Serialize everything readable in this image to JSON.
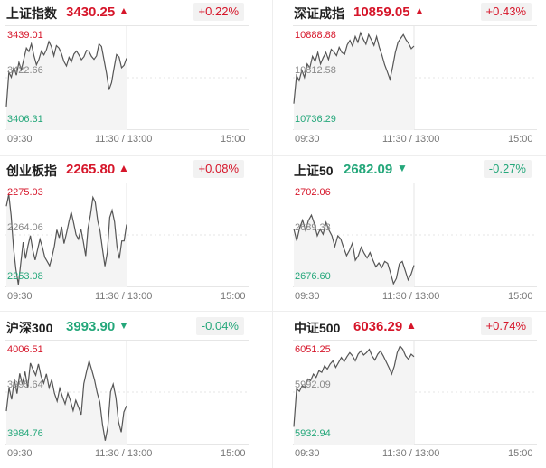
{
  "panels": [
    {
      "name": "上证指数",
      "price": "3430.25",
      "change": "+0.22%",
      "direction": "up",
      "y_high": "3439.01",
      "y_mid": "3422.66",
      "y_low": "3406.31",
      "x_ticks": [
        "09:30",
        "11:30 / 13:00",
        "15:00"
      ],
      "series": [
        3413.0,
        3424.5,
        3422.8,
        3426.2,
        3423.5,
        3427.8,
        3425.3,
        3429.0,
        3432.6,
        3431.4,
        3434.0,
        3430.1,
        3427.0,
        3428.8,
        3431.6,
        3430.3,
        3432.0,
        3434.8,
        3433.0,
        3430.0,
        3433.4,
        3432.6,
        3430.7,
        3428.1,
        3426.6,
        3429.5,
        3428.0,
        3430.6,
        3431.6,
        3430.2,
        3428.7,
        3429.7,
        3431.8,
        3431.5,
        3429.8,
        3428.8,
        3430.0,
        3434.0,
        3433.1,
        3428.6,
        3424.2,
        3418.6,
        3421.0,
        3425.8,
        3430.4,
        3429.6,
        3426.0,
        3426.8,
        3429.2
      ]
    },
    {
      "name": "深证成指",
      "price": "10859.05",
      "change": "+0.43%",
      "direction": "up",
      "y_high": "10888.88",
      "y_mid": "10812.58",
      "y_low": "10736.29",
      "x_ticks": [
        "09:30",
        "11:30 / 13:00",
        "15:00"
      ],
      "series": [
        10772.0,
        10816.0,
        10808.0,
        10824.0,
        10813.0,
        10834.0,
        10828.0,
        10846.0,
        10838.0,
        10852.0,
        10834.0,
        10844.0,
        10852.0,
        10841.0,
        10857.0,
        10853.0,
        10847.0,
        10860.0,
        10852.0,
        10849.0,
        10864.0,
        10871.0,
        10862.0,
        10877.0,
        10868.0,
        10883.0,
        10873.0,
        10865.0,
        10880.0,
        10872.0,
        10863.0,
        10877.0,
        10860.0,
        10848.0,
        10833.0,
        10822.0,
        10810.0,
        10830.0,
        10852.0,
        10868.0,
        10874.0,
        10880.0,
        10872.0,
        10866.0,
        10858.0,
        10862.0
      ]
    },
    {
      "name": "创业板指",
      "price": "2265.80",
      "change": "+0.08%",
      "direction": "up",
      "y_high": "2275.03",
      "y_mid": "2264.06",
      "y_low": "2253.08",
      "x_ticks": [
        "09:30",
        "11:30 / 13:00",
        "15:00"
      ],
      "series": [
        2270.5,
        2273.2,
        2268.4,
        2261.0,
        2256.3,
        2252.9,
        2257.8,
        2262.4,
        2258.7,
        2261.6,
        2263.9,
        2260.6,
        2258.4,
        2260.8,
        2263.1,
        2261.3,
        2259.0,
        2258.1,
        2257.1,
        2259.1,
        2261.6,
        2265.2,
        2263.4,
        2265.9,
        2262.1,
        2264.4,
        2267.0,
        2269.2,
        2266.7,
        2264.1,
        2263.1,
        2265.4,
        2262.6,
        2259.3,
        2265.6,
        2268.6,
        2272.5,
        2271.4,
        2267.2,
        2264.9,
        2260.8,
        2257.0,
        2260.1,
        2268.0,
        2269.6,
        2267.0,
        2261.4,
        2258.7,
        2262.7,
        2262.7,
        2266.4
      ]
    },
    {
      "name": "上证50",
      "price": "2682.09",
      "change": "-0.27%",
      "direction": "down",
      "y_high": "2702.06",
      "y_mid": "2689.33",
      "y_low": "2676.60",
      "x_ticks": [
        "09:30",
        "11:30 / 13:00",
        "15:00"
      ],
      "series": [
        2690.9,
        2687.8,
        2691.2,
        2693.2,
        2690.5,
        2693.1,
        2694.5,
        2692.3,
        2689.1,
        2690.8,
        2689.5,
        2692.6,
        2690.6,
        2689.1,
        2686.3,
        2689.1,
        2688.3,
        2686.0,
        2683.9,
        2685.3,
        2687.2,
        2682.7,
        2683.9,
        2686.1,
        2684.5,
        2683.3,
        2684.7,
        2682.7,
        2681.0,
        2682.0,
        2680.8,
        2682.4,
        2681.9,
        2679.4,
        2676.6,
        2678.0,
        2681.8,
        2682.4,
        2680.0,
        2677.6,
        2679.1,
        2681.4
      ]
    },
    {
      "name": "沪深300",
      "price": "3993.90",
      "change": "-0.04%",
      "direction": "down",
      "y_high": "4006.51",
      "y_mid": "3995.64",
      "y_low": "3984.76",
      "x_ticks": [
        "09:30",
        "11:30 / 13:00",
        "15:00"
      ],
      "series": [
        3991.4,
        3996.6,
        3994.0,
        3998.5,
        3995.3,
        3999.8,
        3997.4,
        4000.2,
        3996.6,
        4002.1,
        4000.6,
        3999.4,
        4001.9,
        3999.2,
        3997.6,
        3999.7,
        3996.6,
        3998.4,
        3995.4,
        3993.6,
        3996.5,
        3994.6,
        3993.0,
        3995.4,
        3993.7,
        3991.5,
        3993.8,
        3992.3,
        3990.6,
        3997.5,
        4000.2,
        4002.6,
        4000.5,
        3998.4,
        3995.5,
        3993.4,
        3988.4,
        3984.8,
        3987.9,
        3995.7,
        3997.4,
        3994.4,
        3989.0,
        3986.7,
        3991.2,
        3992.6
      ]
    },
    {
      "name": "中证500",
      "price": "6036.29",
      "change": "+0.74%",
      "direction": "up",
      "y_high": "6051.25",
      "y_mid": "5992.09",
      "y_low": "5932.94",
      "x_ticks": [
        "09:30",
        "11:30 / 13:00",
        "15:00"
      ],
      "series": [
        5950.0,
        5996.0,
        5993.0,
        6000.0,
        5997.0,
        6008.0,
        6006.0,
        6014.0,
        6010.0,
        6018.0,
        6016.0,
        6024.0,
        6020.0,
        6026.0,
        6030.0,
        6022.0,
        6028.0,
        6034.0,
        6029.0,
        6035.0,
        6040.0,
        6036.0,
        6030.0,
        6038.0,
        6042.0,
        6037.0,
        6040.0,
        6044.0,
        6036.0,
        6031.0,
        6038.0,
        6042.0,
        6036.0,
        6029.0,
        6022.0,
        6014.0,
        6024.0,
        6040.0,
        6048.0,
        6044.0,
        6036.0,
        6032.0,
        6038.0,
        6035.0
      ]
    }
  ],
  "colors": {
    "up": "#d6162a",
    "down": "#24a77a",
    "line": "#555555",
    "fill": "#f4f4f4",
    "grid": "#e6e6e6"
  }
}
